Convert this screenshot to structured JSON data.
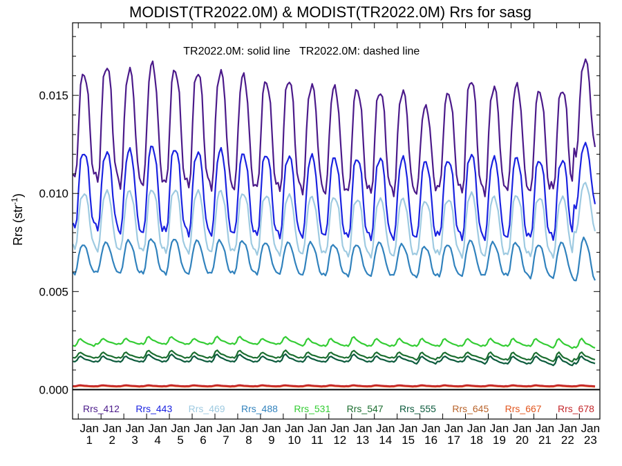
{
  "chart_data": {
    "type": "line",
    "title": "MODIST(TR2022.0M) & MODIST(TR2022.0M)  Rrs for sasg",
    "subtitle_solid": "TR2022.0M: solid line",
    "subtitle_dashed": "TR2022.0M: dashed line",
    "ylabel": "Rrs (str",
    "ylabel_sup": "-1",
    "ylabel_close": ")",
    "ylim": [
      -0.0015,
      0.0187
    ],
    "yticks": [
      {
        "value": 0.0,
        "label": "0.000"
      },
      {
        "value": 0.005,
        "label": "0.005"
      },
      {
        "value": 0.01,
        "label": "0.010"
      },
      {
        "value": 0.015,
        "label": "0.015"
      }
    ],
    "xlim": [
      0,
      23.15
    ],
    "zero_line": true,
    "x_tick_month": "Jan",
    "x_tick_years": [
      "1",
      "2",
      "3",
      "4",
      "5",
      "6",
      "7",
      "8",
      "9",
      "10",
      "11",
      "12",
      "13",
      "14",
      "15",
      "16",
      "17",
      "18",
      "19",
      "20",
      "21",
      "22",
      "23"
    ],
    "series": [
      {
        "name": "Rrs_412",
        "color": "#4b1a8a",
        "profile": "deep",
        "peaks": [
          0.0161,
          0.0165,
          0.0163,
          0.0166,
          0.0163,
          0.0162,
          0.0162,
          0.016,
          0.0157,
          0.0158,
          0.0155,
          0.0154,
          0.0153,
          0.0152,
          0.0152,
          0.0144,
          0.0151,
          0.0158,
          0.0154,
          0.0155,
          0.0152,
          0.0153,
          0.0168
        ],
        "troughs": [
          0.0107,
          0.0106,
          0.0104,
          0.0104,
          0.0104,
          0.0103,
          0.0103,
          0.0102,
          0.0102,
          0.0101,
          0.0101,
          0.01,
          0.01,
          0.01,
          0.01,
          0.01,
          0.0102,
          0.01,
          0.01,
          0.0102,
          0.01,
          0.0102,
          0.012
        ]
      },
      {
        "name": "Rrs_443",
        "color": "#1a22e0",
        "profile": "deep",
        "peaks": [
          0.0121,
          0.0121,
          0.0122,
          0.0124,
          0.0123,
          0.0121,
          0.0122,
          0.012,
          0.012,
          0.0119,
          0.0119,
          0.0118,
          0.0118,
          0.0118,
          0.0118,
          0.0116,
          0.0117,
          0.012,
          0.0118,
          0.0118,
          0.0117,
          0.0117,
          0.0125
        ],
        "troughs": [
          0.0082,
          0.0082,
          0.008,
          0.0079,
          0.008,
          0.0079,
          0.0079,
          0.0079,
          0.0078,
          0.0078,
          0.0078,
          0.0078,
          0.0077,
          0.0077,
          0.0077,
          0.0077,
          0.0078,
          0.0077,
          0.0077,
          0.0077,
          0.0077,
          0.0077,
          0.0093
        ]
      },
      {
        "name": "Rrs_469",
        "color": "#9ecae1",
        "profile": "deep",
        "peaks": [
          0.01,
          0.0101,
          0.0101,
          0.0102,
          0.0102,
          0.0101,
          0.0101,
          0.01,
          0.0099,
          0.0099,
          0.0098,
          0.0098,
          0.0097,
          0.0097,
          0.0097,
          0.0096,
          0.0097,
          0.01,
          0.0098,
          0.0099,
          0.0098,
          0.0098,
          0.0105
        ],
        "troughs": [
          0.0072,
          0.0071,
          0.0071,
          0.007,
          0.007,
          0.007,
          0.007,
          0.007,
          0.0069,
          0.0069,
          0.0069,
          0.0069,
          0.0068,
          0.0068,
          0.0068,
          0.0068,
          0.0069,
          0.0068,
          0.0068,
          0.0068,
          0.0068,
          0.0068,
          0.008
        ]
      },
      {
        "name": "Rrs_488",
        "color": "#3182bd",
        "profile": "mid",
        "peaks": [
          0.0074,
          0.0075,
          0.0076,
          0.0077,
          0.0077,
          0.0076,
          0.0076,
          0.0076,
          0.0075,
          0.0075,
          0.0075,
          0.0074,
          0.0074,
          0.0075,
          0.0074,
          0.0073,
          0.0074,
          0.0076,
          0.0075,
          0.0075,
          0.0074,
          0.0075,
          0.0077
        ],
        "troughs": [
          0.0059,
          0.006,
          0.0059,
          0.0059,
          0.0059,
          0.0059,
          0.0059,
          0.0059,
          0.0059,
          0.0059,
          0.0058,
          0.0058,
          0.0058,
          0.0058,
          0.0058,
          0.0057,
          0.0058,
          0.0058,
          0.0058,
          0.0058,
          0.0057,
          0.0057,
          0.0055
        ]
      },
      {
        "name": "Rrs_531",
        "color": "#33cc33",
        "profile": "small",
        "peaks": [
          0.0026,
          0.0026,
          0.0026,
          0.0027,
          0.0027,
          0.0026,
          0.0027,
          0.0027,
          0.0026,
          0.0027,
          0.0026,
          0.0026,
          0.0027,
          0.0026,
          0.0026,
          0.0026,
          0.0026,
          0.0026,
          0.0026,
          0.0026,
          0.0026,
          0.0026,
          0.0026
        ],
        "troughs": [
          0.0022,
          0.0023,
          0.0023,
          0.0023,
          0.0023,
          0.0023,
          0.0023,
          0.0023,
          0.0023,
          0.0023,
          0.0022,
          0.0022,
          0.0022,
          0.0022,
          0.0022,
          0.0022,
          0.0022,
          0.0022,
          0.0022,
          0.0022,
          0.0022,
          0.0021,
          0.0021
        ]
      },
      {
        "name": "Rrs_547",
        "color": "#1b6e2f",
        "profile": "small",
        "peaks": [
          0.0019,
          0.0019,
          0.0019,
          0.002,
          0.002,
          0.0019,
          0.002,
          0.002,
          0.0019,
          0.002,
          0.0019,
          0.0019,
          0.002,
          0.0019,
          0.0019,
          0.0019,
          0.0019,
          0.0019,
          0.0019,
          0.0019,
          0.0019,
          0.0019,
          0.0019
        ],
        "troughs": [
          0.0016,
          0.0016,
          0.0016,
          0.0016,
          0.0016,
          0.0016,
          0.0016,
          0.0016,
          0.0016,
          0.0016,
          0.0016,
          0.0016,
          0.0016,
          0.0016,
          0.0016,
          0.0015,
          0.0016,
          0.0016,
          0.0015,
          0.0015,
          0.0015,
          0.0014,
          0.0015
        ]
      },
      {
        "name": "Rrs_555",
        "color": "#0b5a3c",
        "profile": "small",
        "peaks": [
          0.0017,
          0.0017,
          0.0017,
          0.0018,
          0.0018,
          0.0017,
          0.0018,
          0.0018,
          0.0017,
          0.0018,
          0.0017,
          0.0017,
          0.0018,
          0.0017,
          0.0017,
          0.0017,
          0.0017,
          0.0017,
          0.0017,
          0.0017,
          0.0017,
          0.0017,
          0.0017
        ],
        "troughs": [
          0.0014,
          0.0014,
          0.0014,
          0.0014,
          0.0014,
          0.0014,
          0.0014,
          0.0014,
          0.0014,
          0.0014,
          0.0014,
          0.0014,
          0.0014,
          0.0014,
          0.0014,
          0.0013,
          0.0014,
          0.0014,
          0.0013,
          0.0013,
          0.0013,
          0.0012,
          0.0013
        ]
      },
      {
        "name": "Rrs_645",
        "color": "#b8632a",
        "profile": "tiny",
        "peaks": [
          0.00022,
          0.00022,
          0.00022,
          0.00022,
          0.00022,
          0.00022,
          0.00022,
          0.00022,
          0.00022,
          0.00022,
          0.00022,
          0.00022,
          0.00022,
          0.00022,
          0.00022,
          0.00022,
          0.00022,
          0.00022,
          0.00022,
          0.00022,
          0.00022,
          0.00022,
          0.00022
        ],
        "troughs": [
          0.00016,
          0.00016,
          0.00016,
          0.00016,
          0.00016,
          0.00016,
          0.00016,
          0.00016,
          0.00016,
          0.00016,
          0.00016,
          0.00016,
          0.00016,
          0.00016,
          0.00016,
          0.00016,
          0.00016,
          0.00016,
          0.00016,
          0.00016,
          0.00016,
          0.00016,
          0.00016
        ]
      },
      {
        "name": "Rrs_667",
        "color": "#e2561e",
        "profile": "tiny",
        "peaks": [
          0.0002,
          0.0002,
          0.0002,
          0.0002,
          0.0002,
          0.0002,
          0.0002,
          0.0002,
          0.0002,
          0.0002,
          0.0002,
          0.0002,
          0.0002,
          0.0002,
          0.0002,
          0.0002,
          0.0002,
          0.0002,
          0.0002,
          0.0002,
          0.0002,
          0.0002,
          0.0002
        ],
        "troughs": [
          0.00014,
          0.00014,
          0.00014,
          0.00014,
          0.00014,
          0.00014,
          0.00014,
          0.00014,
          0.00014,
          0.00014,
          0.00014,
          0.00014,
          0.00014,
          0.00014,
          0.00014,
          0.00014,
          0.00014,
          0.00014,
          0.00014,
          0.00014,
          0.00014,
          0.00014,
          0.00014
        ]
      },
      {
        "name": "Rrs_678",
        "color": "#c4262a",
        "profile": "tiny",
        "peaks": [
          0.00023,
          0.00023,
          0.00023,
          0.00023,
          0.00023,
          0.00023,
          0.00023,
          0.00023,
          0.00023,
          0.00023,
          0.00023,
          0.00023,
          0.00023,
          0.00023,
          0.00023,
          0.00023,
          0.00023,
          0.00023,
          0.00023,
          0.00023,
          0.00023,
          0.00023,
          0.00023
        ],
        "troughs": [
          0.00017,
          0.00017,
          0.00017,
          0.00017,
          0.00017,
          0.00017,
          0.00017,
          0.00017,
          0.00017,
          0.00017,
          0.00017,
          0.00017,
          0.00017,
          0.00017,
          0.00017,
          0.00017,
          0.00017,
          0.00017,
          0.00017,
          0.00017,
          0.00017,
          0.00017,
          0.00017
        ]
      }
    ]
  }
}
